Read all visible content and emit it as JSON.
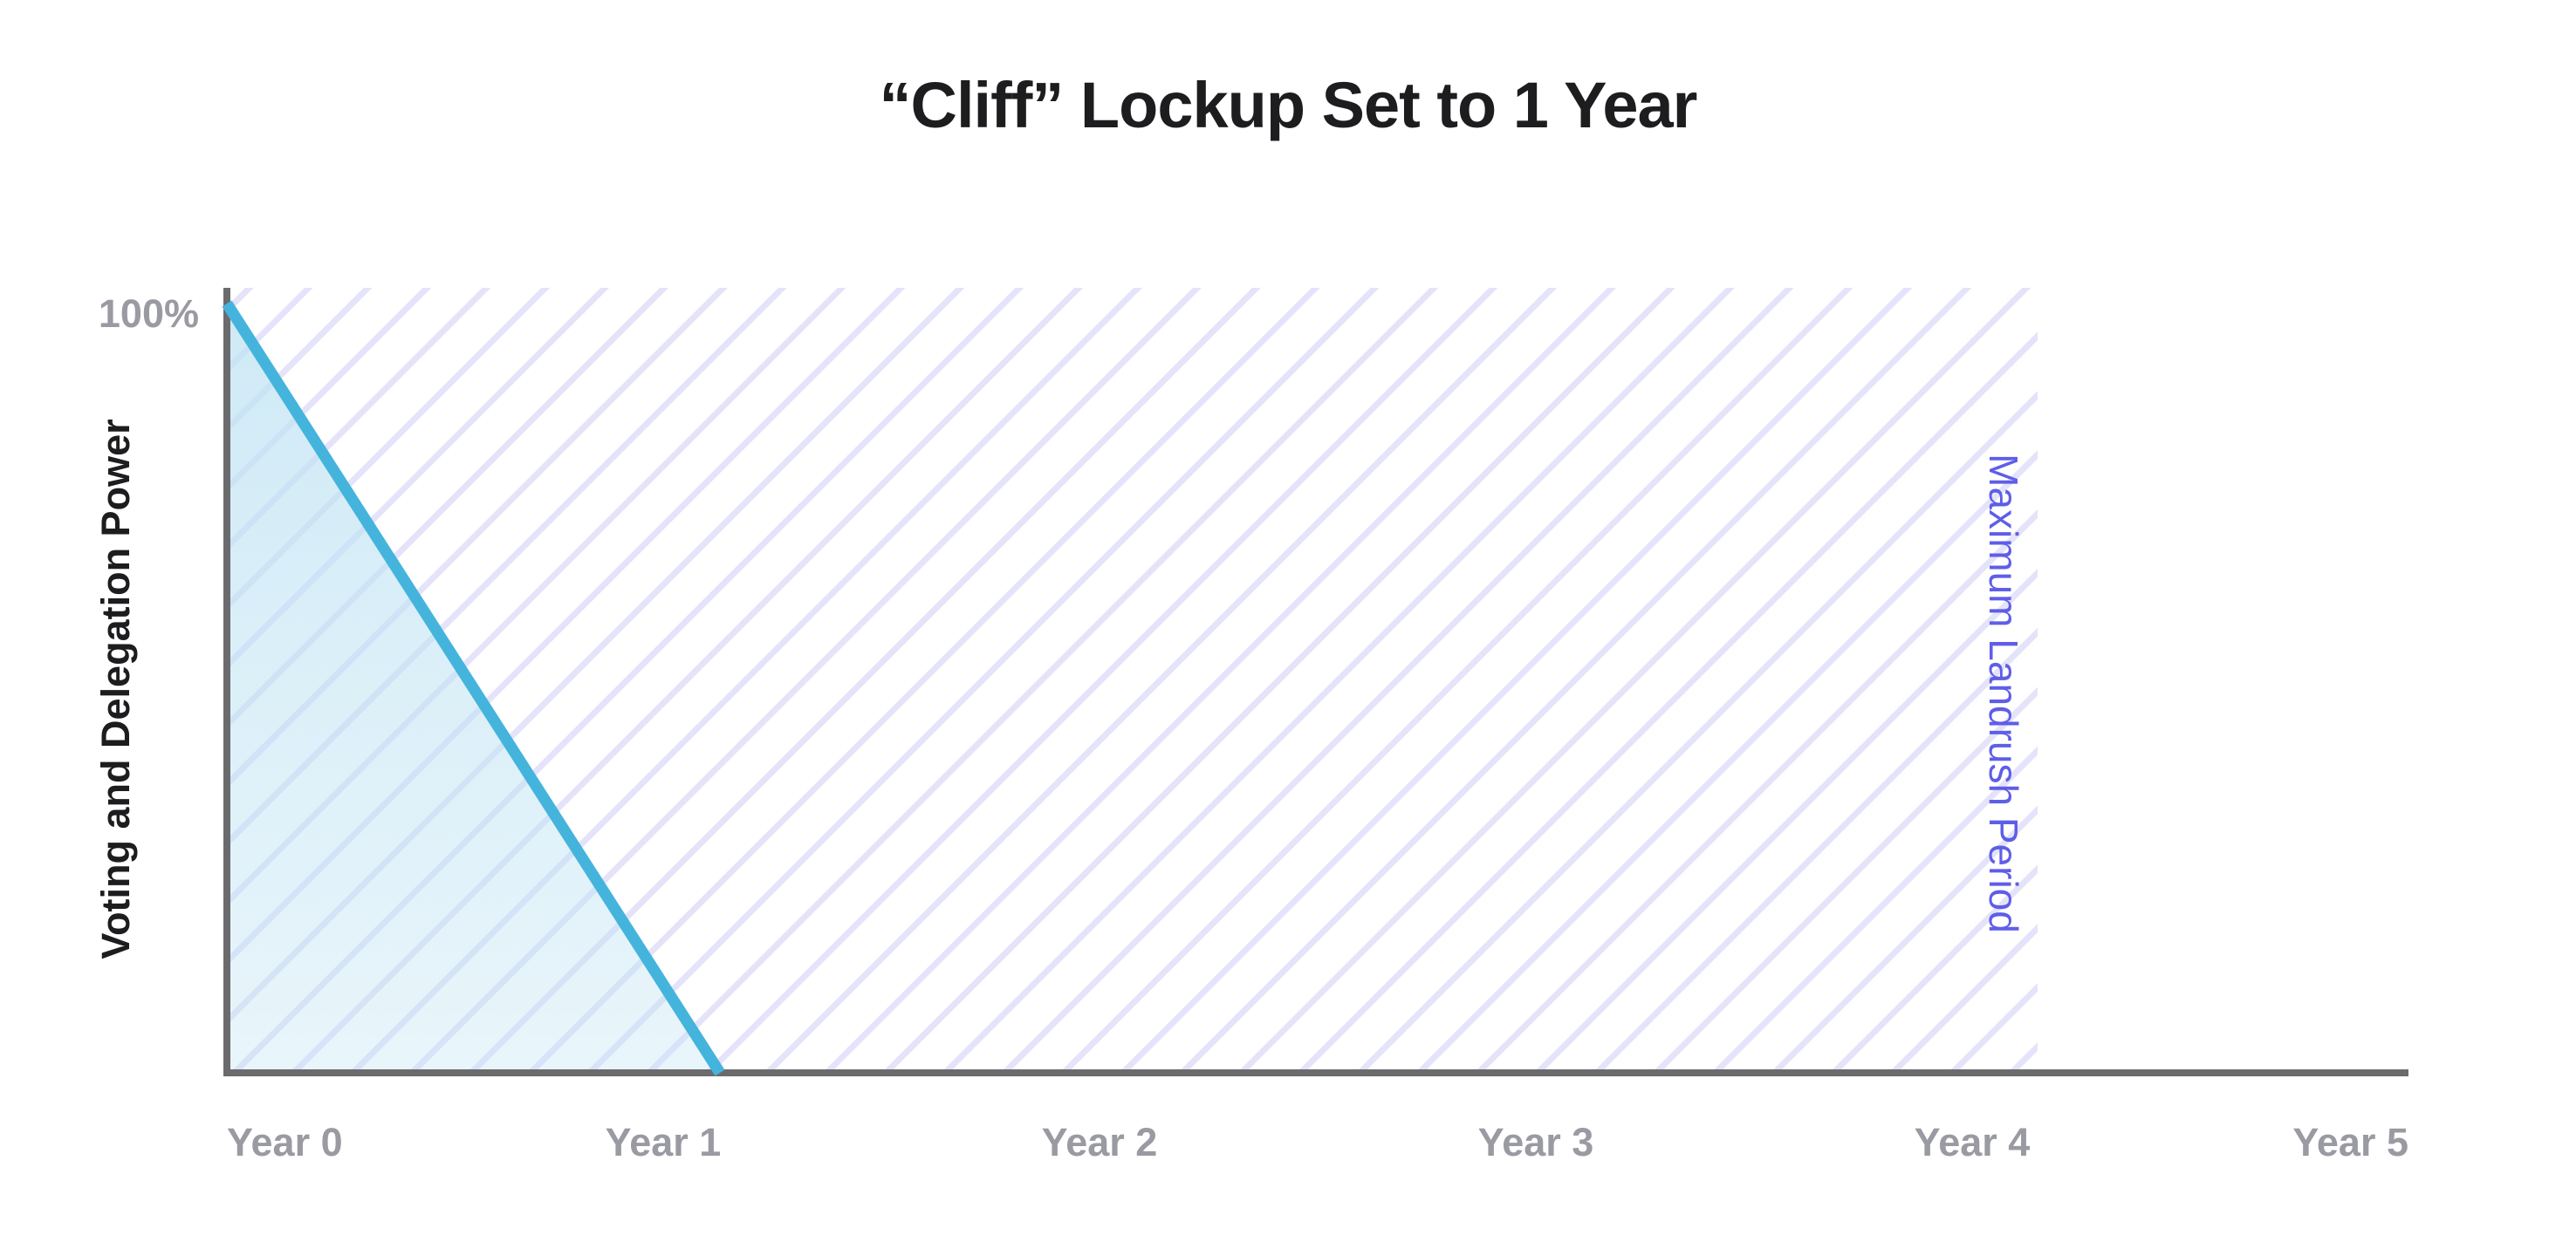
{
  "chart_data": {
    "type": "line",
    "title": "“Cliff” Lockup Set to 1 Year",
    "xlabel": "",
    "ylabel": "Voting and Delegation Power",
    "x_ticks": [
      "Year 0",
      "Year 1",
      "Year 2",
      "Year 3",
      "Year 4",
      "Year 5"
    ],
    "y_ticks": [
      "100%"
    ],
    "xlim": [
      0,
      5
    ],
    "ylim": [
      0,
      100
    ],
    "grid": false,
    "series": [
      {
        "x": [
          0,
          1.13
        ],
        "y": [
          100,
          0
        ],
        "color": "#45b4dc",
        "fill": true
      }
    ],
    "shaded_region": {
      "label": "Maximum Landrush Period",
      "x_start": 0,
      "x_end": 4.15,
      "pattern": "diagonal-hatch",
      "color": "#5f5ee8"
    },
    "colors": {
      "axis": "#6b6b6e",
      "line": "#45b4dc",
      "area": "#bfe3f3",
      "hatch": "#e4e3fa",
      "region_label": "#5f5ee8",
      "tick_text": "#9a9aa2",
      "title_text": "#1d1d1f"
    }
  }
}
